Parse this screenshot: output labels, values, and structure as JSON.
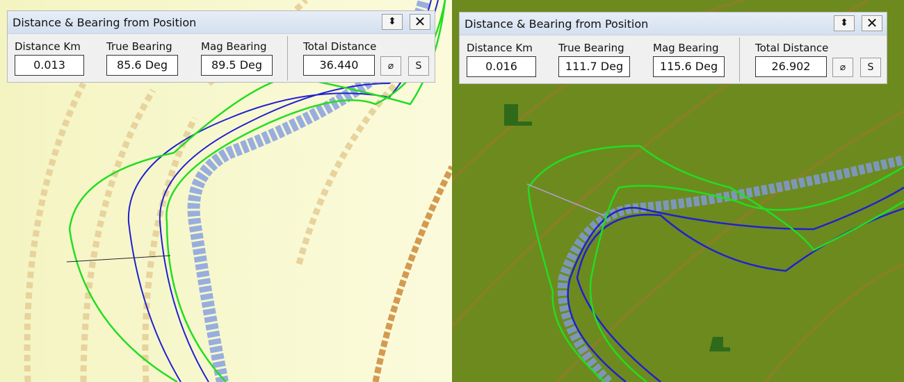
{
  "panels": [
    {
      "title": "Distance & Bearing from Position",
      "fields": [
        {
          "label": "Distance Km",
          "value": "0.013"
        },
        {
          "label": "True Bearing",
          "value": "85.6 Deg"
        },
        {
          "label": "Mag Bearing",
          "value": "89.5 Deg"
        }
      ],
      "total": {
        "label": "Total Distance",
        "value": "36.440"
      },
      "save_button": "S"
    },
    {
      "title": "Distance & Bearing from Position",
      "fields": [
        {
          "label": "Distance Km",
          "value": "0.016"
        },
        {
          "label": "True Bearing",
          "value": "111.7 Deg"
        },
        {
          "label": "Mag Bearing",
          "value": "115.6 Deg"
        }
      ],
      "total": {
        "label": "Total Distance",
        "value": "26.902"
      },
      "save_button": "S"
    }
  ]
}
